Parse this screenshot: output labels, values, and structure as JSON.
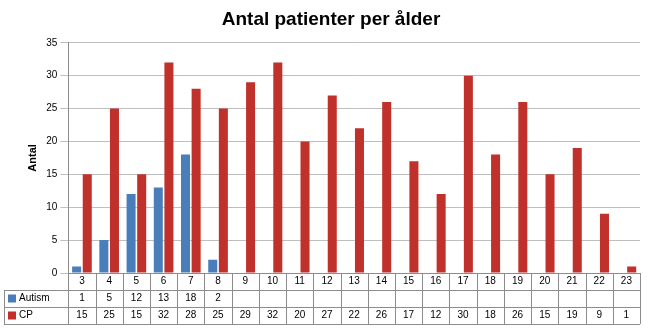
{
  "chart_data": {
    "type": "bar",
    "title": "Antal patienter per ålder",
    "y_label": "Antal",
    "categories": [
      "3",
      "4",
      "5",
      "6",
      "7",
      "8",
      "9",
      "10",
      "11",
      "12",
      "13",
      "14",
      "15",
      "16",
      "17",
      "18",
      "19",
      "20",
      "21",
      "22",
      "23"
    ],
    "series": [
      {
        "name": "Autism",
        "color": "#4a7ebb",
        "values": [
          1,
          5,
          12,
          13,
          18,
          2,
          null,
          null,
          null,
          null,
          null,
          null,
          null,
          null,
          null,
          null,
          null,
          null,
          null,
          null,
          null
        ]
      },
      {
        "name": "CP",
        "color": "#c0312b",
        "values": [
          15,
          25,
          15,
          32,
          28,
          25,
          29,
          32,
          20,
          27,
          22,
          26,
          17,
          12,
          30,
          18,
          26,
          15,
          19,
          9,
          1
        ]
      }
    ],
    "ylim": [
      0,
      35
    ],
    "yticks": [
      0,
      5,
      10,
      15,
      20,
      25,
      30,
      35
    ],
    "grid": true
  }
}
